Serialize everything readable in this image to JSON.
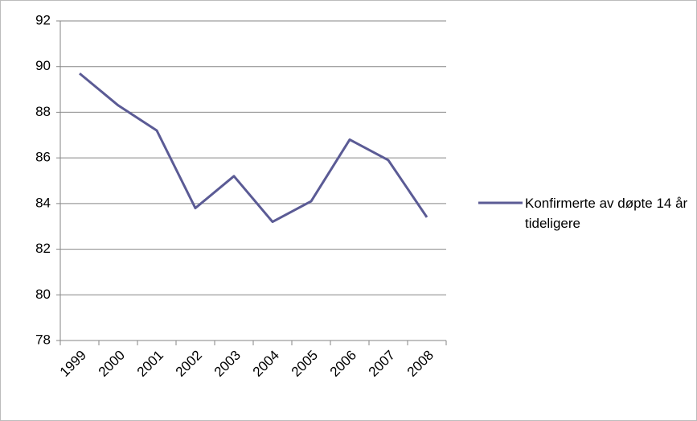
{
  "chart_data": {
    "type": "line",
    "categories": [
      "1999",
      "2000",
      "2001",
      "2002",
      "2003",
      "2004",
      "2005",
      "2006",
      "2007",
      "2008"
    ],
    "series": [
      {
        "name": "Konfirmerte av døpte 14 år tideligere",
        "color": "#5b5b95",
        "values": [
          89.7,
          88.3,
          87.2,
          83.8,
          85.2,
          83.2,
          84.1,
          86.8,
          85.9,
          83.4
        ]
      }
    ],
    "ylim": [
      78,
      92
    ],
    "yticks": [
      78,
      80,
      82,
      84,
      86,
      88,
      90,
      92
    ],
    "grid": true,
    "legend": "right"
  }
}
